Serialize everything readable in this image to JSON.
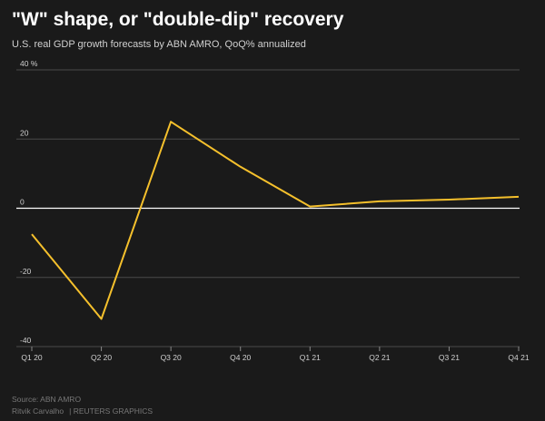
{
  "header": {
    "title": "\"W\" shape, or \"double-dip\" recovery",
    "subtitle": "U.S. real GDP growth forecasts by ABN AMRO, QoQ% annualized"
  },
  "footer": {
    "source": "Source: ABN AMRO",
    "author": "Ritvik Carvalho",
    "graphics": "| REUTERS GRAPHICS"
  },
  "colors": {
    "background": "#1a1a1a",
    "line": "#f5c02c",
    "grid": "#4a4a4a",
    "zero_line": "#ffffff",
    "tick_text": "#d0d0d0"
  },
  "chart_data": {
    "type": "line",
    "title": "\"W\" shape, or \"double-dip\" recovery",
    "subtitle": "U.S. real GDP growth forecasts by ABN AMRO, QoQ% annualized",
    "xlabel": "",
    "ylabel": "",
    "categories": [
      "Q1 20",
      "Q2 20",
      "Q3 20",
      "Q4 20",
      "Q1 21",
      "Q2 21",
      "Q3 21",
      "Q4 21"
    ],
    "series": [
      {
        "values": [
          -7.5,
          -32,
          25,
          12,
          0.5,
          2,
          2.5,
          3.3
        ]
      }
    ],
    "ylim": [
      -40,
      40
    ],
    "yticks": [
      40,
      20,
      0,
      -20,
      -40
    ],
    "ytick_labels": [
      "40 %",
      "20",
      "0",
      "-20",
      "-40"
    ],
    "grid": true,
    "legend": "none"
  }
}
